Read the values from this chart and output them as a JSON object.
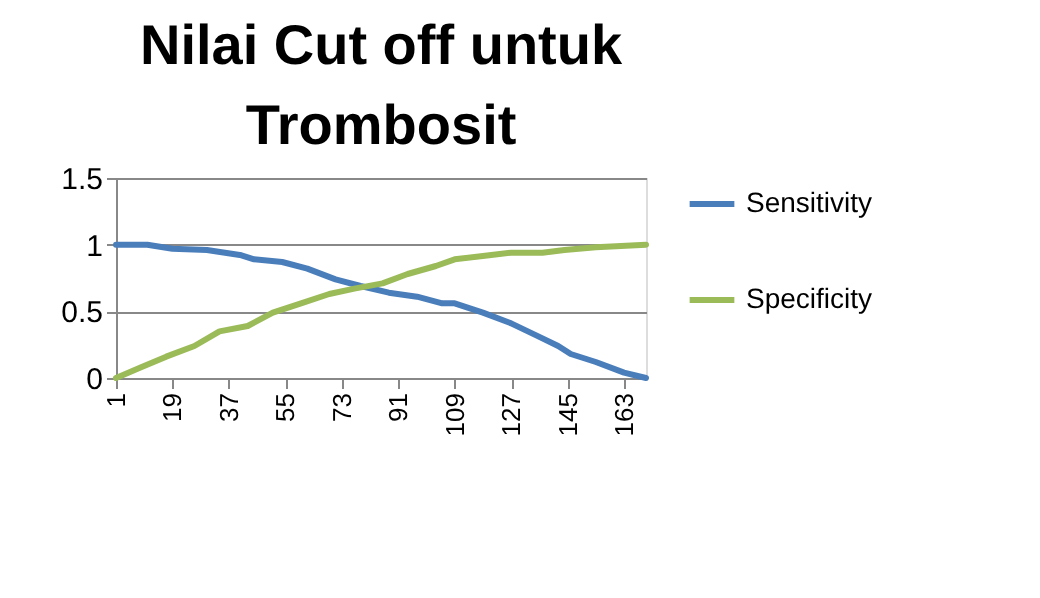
{
  "chart_data": {
    "type": "line",
    "title": "Nilai Cut off untuk Trombosit",
    "xlim": [
      1,
      170
    ],
    "xticks": [
      1,
      19,
      37,
      55,
      73,
      91,
      109,
      127,
      145,
      163
    ],
    "ylim": [
      0,
      1.5
    ],
    "yticks": [
      0,
      0.5,
      1,
      1.5
    ],
    "grid": "y",
    "legend": "right",
    "marker": "none",
    "line_style": "solid",
    "series": [
      {
        "name": "Sensitivity",
        "color": "#4a7ebb",
        "x": [
          1,
          11,
          19,
          30,
          41,
          45,
          54,
          62,
          71,
          79,
          88,
          97,
          105,
          109,
          118,
          127,
          135,
          142,
          146,
          154,
          163,
          170
        ],
        "values": [
          1,
          1,
          0.97,
          0.96,
          0.92,
          0.89,
          0.87,
          0.82,
          0.74,
          0.69,
          0.64,
          0.61,
          0.56,
          0.56,
          0.49,
          0.41,
          0.32,
          0.24,
          0.18,
          0.12,
          0.04,
          0
        ]
      },
      {
        "name": "Specificity",
        "color": "#9bbb59",
        "x": [
          1,
          9,
          17,
          26,
          34,
          43,
          51,
          60,
          69,
          77,
          86,
          94,
          103,
          109,
          120,
          127,
          137,
          144,
          154,
          170
        ],
        "values": [
          0,
          0.08,
          0.16,
          0.24,
          0.35,
          0.39,
          0.49,
          0.56,
          0.63,
          0.67,
          0.71,
          0.78,
          0.84,
          0.89,
          0.92,
          0.94,
          0.94,
          0.96,
          0.98,
          1
        ]
      }
    ]
  }
}
